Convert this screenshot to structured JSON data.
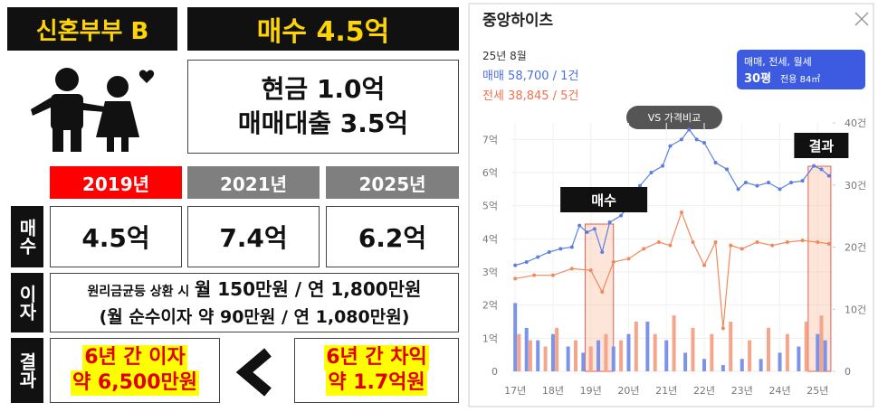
{
  "panel": {
    "title": "신혼부부 B",
    "purchase": "매수 4.5억",
    "funding": [
      "현금 1.0억",
      "매매대출 3.5억"
    ],
    "years": [
      "2019년",
      "2021년",
      "2025년"
    ],
    "rows": [
      {
        "label": "매수",
        "cells": [
          "4.5억",
          "7.4억",
          "6.2억"
        ]
      },
      {
        "label": "이자",
        "lines": [
          "원리금균등 상환 시",
          "월 150만원 / 연 1,800만원",
          "(월 순수이자 약 90만원 / 연 1,080만원)"
        ]
      },
      {
        "label": "결과",
        "left": [
          "6년 간 이자",
          "약 6,500만원"
        ],
        "right": [
          "6년 간 차익",
          "약 1.7억원"
        ]
      }
    ]
  },
  "chart_data": {
    "type": "line",
    "title": "중앙하이츠",
    "date": "25년 8월",
    "legend": [
      "매매 58,700 / 1건",
      "전세 38,845 / 5건"
    ],
    "compare_button": "VS 가격비교",
    "filter": "매매, 전세, 월세",
    "size": "30평",
    "area": "전용 84㎡",
    "xlim": [
      2016.9,
      2025.4
    ],
    "xticks": [
      {
        "value": 2017,
        "label": "17년"
      },
      {
        "value": 2018,
        "label": "18년"
      },
      {
        "value": 2019,
        "label": "19년"
      },
      {
        "value": 2020,
        "label": "20년"
      },
      {
        "value": 2021,
        "label": "21년"
      },
      {
        "value": 2022,
        "label": "22년"
      },
      {
        "value": 2023,
        "label": "23년"
      },
      {
        "value": 2024,
        "label": "24년"
      },
      {
        "value": 2025,
        "label": "25년"
      }
    ],
    "ylim": [
      0,
      7.5
    ],
    "yticks": [
      0,
      {
        "value": 1,
        "label": "1억"
      },
      {
        "value": 2,
        "label": "2억"
      },
      {
        "value": 3,
        "label": "3억"
      },
      {
        "value": 4,
        "label": "4억"
      },
      {
        "value": 5,
        "label": "5억"
      },
      {
        "value": 6,
        "label": "6억"
      },
      {
        "value": 7,
        "label": "7억"
      }
    ],
    "y2lim": [
      0,
      40
    ],
    "y2ticks": [
      0,
      {
        "value": 10,
        "label": "10건"
      },
      {
        "value": 20,
        "label": "20건"
      },
      {
        "value": 30,
        "label": "30건"
      },
      {
        "value": 40,
        "label": "40건"
      }
    ],
    "grid": true,
    "series": [
      {
        "color": "#5b7fe0",
        "x": [
          2017.0,
          2017.3,
          2017.6,
          2017.9,
          2018.2,
          2018.5,
          2018.7,
          2018.9,
          2019.1,
          2019.3,
          2019.5,
          2019.8,
          2020.0,
          2020.3,
          2020.6,
          2020.9,
          2021.1,
          2021.4,
          2021.6,
          2021.8,
          2022.0,
          2022.3,
          2022.6,
          2022.9,
          2023.1,
          2023.4,
          2023.7,
          2024.0,
          2024.3,
          2024.6,
          2024.9,
          2025.1,
          2025.3
        ],
        "values": [
          3.2,
          3.3,
          3.45,
          3.6,
          3.7,
          3.75,
          4.4,
          4.2,
          4.3,
          3.6,
          4.5,
          4.7,
          5.0,
          5.6,
          6.0,
          6.2,
          6.8,
          7.0,
          7.3,
          7.0,
          6.9,
          6.3,
          6.1,
          5.5,
          5.7,
          5.6,
          5.7,
          5.5,
          5.7,
          5.75,
          6.2,
          6.1,
          5.9
        ]
      },
      {
        "color": "#f08a5d",
        "x": [
          2017.0,
          2017.5,
          2018.0,
          2018.5,
          2019.0,
          2019.3,
          2019.6,
          2020.0,
          2020.4,
          2020.8,
          2021.1,
          2021.4,
          2021.7,
          2022.0,
          2022.3,
          2022.5,
          2022.7,
          2023.0,
          2023.4,
          2023.8,
          2024.2,
          2024.6,
          2025.0,
          2025.3
        ],
        "values": [
          2.8,
          2.9,
          2.9,
          3.1,
          3.05,
          2.4,
          3.3,
          3.4,
          3.7,
          3.9,
          3.8,
          4.8,
          3.9,
          3.2,
          3.9,
          1.3,
          3.8,
          3.7,
          3.9,
          3.8,
          3.9,
          3.95,
          3.9,
          3.85
        ]
      },
      {
        "color": "#7b93e8",
        "axis": "y2",
        "bars": true,
        "x": [
          2017.0,
          2017.3,
          2017.6,
          2018.0,
          2018.4,
          2018.8,
          2019.2,
          2019.6,
          2020.0,
          2020.5,
          2021.0,
          2021.5,
          2022.0,
          2022.5,
          2023.0,
          2023.5,
          2024.0,
          2024.5,
          2025.0,
          2025.2
        ],
        "values": [
          11,
          7,
          5,
          6,
          4,
          3,
          5,
          4,
          6,
          8,
          5,
          3,
          2,
          1,
          2,
          2,
          3,
          4,
          6,
          5
        ]
      },
      {
        "color": "#f4a58a",
        "axis": "y2",
        "bars": true,
        "x": [
          2017.1,
          2017.4,
          2017.8,
          2018.1,
          2018.6,
          2019.0,
          2019.4,
          2019.8,
          2020.2,
          2020.7,
          2021.2,
          2021.7,
          2022.2,
          2022.7,
          2023.2,
          2023.7,
          2024.2,
          2024.7,
          2025.1
        ],
        "values": [
          6,
          5,
          4,
          7,
          5,
          4,
          6,
          5,
          8,
          6,
          9,
          7,
          6,
          8,
          5,
          7,
          6,
          8,
          9
        ]
      }
    ],
    "annotations": [
      {
        "label": "매수",
        "x": [
          2018.85,
          2019.6
        ]
      },
      {
        "label": "결과",
        "x": [
          2024.75,
          2025.35
        ]
      }
    ]
  }
}
